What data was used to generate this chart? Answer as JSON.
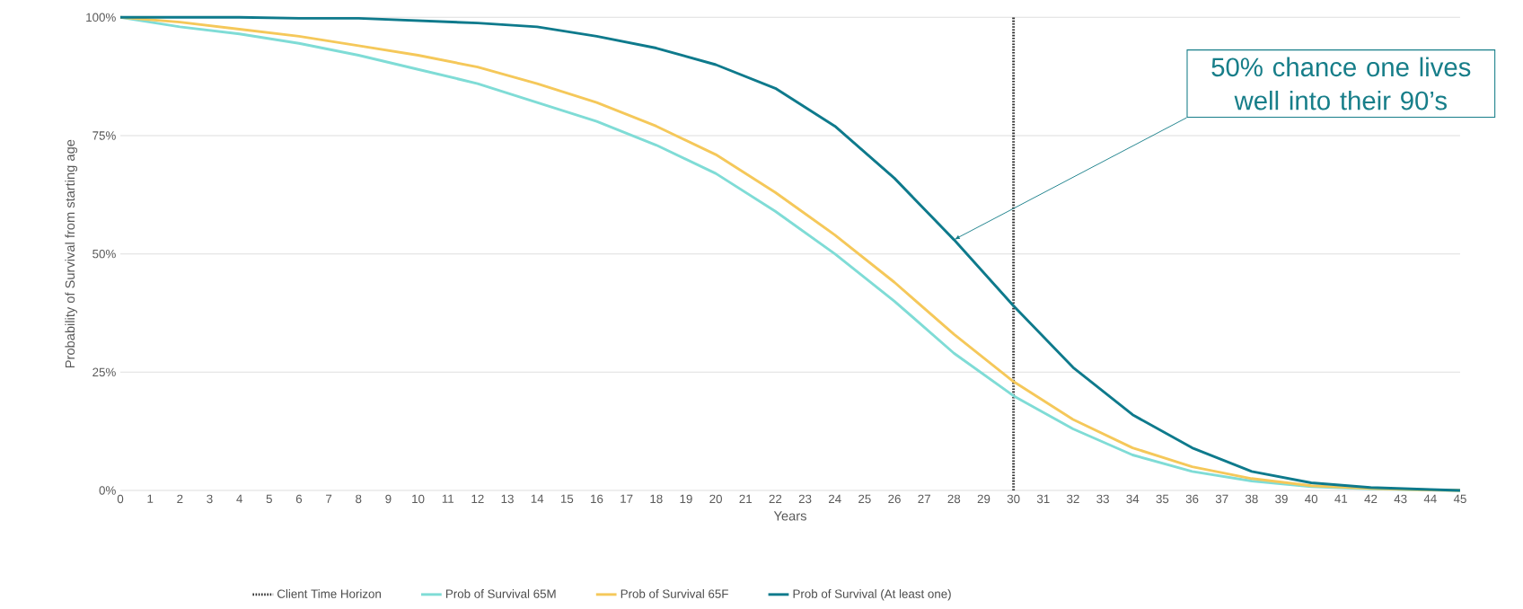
{
  "chart_data": {
    "type": "line",
    "xlabel": "Years",
    "ylabel": "Probability of Survival from starting age",
    "xlim": [
      0,
      45
    ],
    "xticks": [
      0,
      1,
      2,
      3,
      4,
      5,
      6,
      7,
      8,
      9,
      10,
      11,
      12,
      13,
      14,
      15,
      16,
      17,
      18,
      19,
      20,
      21,
      22,
      23,
      24,
      25,
      26,
      27,
      28,
      29,
      30,
      31,
      32,
      33,
      34,
      35,
      36,
      37,
      38,
      39,
      40,
      41,
      42,
      43,
      44,
      45
    ],
    "ylim": [
      0,
      100
    ],
    "yticks": [
      {
        "value": 0,
        "label": "0%"
      },
      {
        "value": 25,
        "label": "25%"
      },
      {
        "value": 50,
        "label": "50%"
      },
      {
        "value": 75,
        "label": "75%"
      },
      {
        "value": 100,
        "label": "100%"
      }
    ],
    "grid": "y",
    "legend": "bottom",
    "marker": "none",
    "line_style": "solid",
    "ref_lines": [
      {
        "axis": "x",
        "value": 30,
        "label": "Client Time Horizon",
        "color": "#333333",
        "line_style": "dotted"
      }
    ],
    "series": [
      {
        "name": "Prob of Survival 65M",
        "color": "#7fdcd6",
        "x": [
          0,
          2,
          4,
          6,
          8,
          10,
          12,
          14,
          16,
          18,
          20,
          22,
          24,
          26,
          28,
          30,
          32,
          34,
          36,
          38,
          40,
          42,
          44,
          45
        ],
        "values": [
          100,
          98,
          96.5,
          94.5,
          92,
          89,
          86,
          82,
          78,
          73,
          67,
          59,
          50,
          40,
          29,
          20,
          13,
          7.5,
          4,
          2,
          0.8,
          0.3,
          0.1,
          0
        ]
      },
      {
        "name": "Prob of Survival 65F",
        "color": "#f5c85a",
        "x": [
          0,
          2,
          4,
          6,
          8,
          10,
          12,
          14,
          16,
          18,
          20,
          22,
          24,
          26,
          28,
          30,
          32,
          34,
          36,
          38,
          40,
          42,
          44,
          45
        ],
        "values": [
          100,
          99,
          97.5,
          96,
          94,
          92,
          89.5,
          86,
          82,
          77,
          71,
          63,
          54,
          44,
          33,
          23,
          15,
          9,
          5,
          2.5,
          1,
          0.4,
          0.1,
          0
        ]
      },
      {
        "name": "Prob of Survival (At least one)",
        "color": "#0e7a8c",
        "x": [
          0,
          2,
          4,
          6,
          8,
          10,
          12,
          14,
          16,
          18,
          20,
          22,
          24,
          26,
          28,
          30,
          32,
          34,
          36,
          38,
          40,
          42,
          44,
          45
        ],
        "values": [
          100,
          100,
          100,
          99.8,
          99.8,
          99.3,
          98.8,
          98,
          96,
          93.5,
          90,
          85,
          77,
          66,
          53,
          39,
          26,
          16,
          9,
          4,
          1.6,
          0.6,
          0.2,
          0
        ]
      }
    ],
    "annotations": [
      {
        "text": "50% chance one lives well into their 90’s",
        "x": 28,
        "y": 53
      }
    ]
  }
}
